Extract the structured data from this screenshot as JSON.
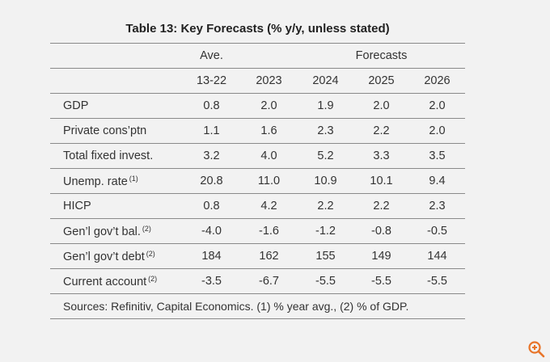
{
  "title": "Table 13: Key Forecasts (% y/y, unless stated)",
  "header": {
    "ave_label": "Ave.",
    "forecasts_label": "Forecasts",
    "years": [
      "13-22",
      "2023",
      "2024",
      "2025",
      "2026"
    ]
  },
  "rows": [
    {
      "label": "GDP",
      "note": "",
      "values": [
        "0.8",
        "2.0",
        "1.9",
        "2.0",
        "2.0"
      ]
    },
    {
      "label": "Private cons’ptn",
      "note": "",
      "values": [
        "1.1",
        "1.6",
        "2.3",
        "2.2",
        "2.0"
      ]
    },
    {
      "label": "Total fixed invest.",
      "note": "",
      "values": [
        "3.2",
        "4.0",
        "5.2",
        "3.3",
        "3.5"
      ]
    },
    {
      "label": "Unemp. rate",
      "note": "(1)",
      "values": [
        "20.8",
        "11.0",
        "10.9",
        "10.1",
        "9.4"
      ]
    },
    {
      "label": "HICP",
      "note": "",
      "values": [
        "0.8",
        "4.2",
        "2.2",
        "2.2",
        "2.3"
      ]
    },
    {
      "label": "Gen’l gov’t bal.",
      "note": "(2)",
      "values": [
        "-4.0",
        "-1.6",
        "-1.2",
        "-0.8",
        "-0.5"
      ]
    },
    {
      "label": "Gen’l gov’t debt",
      "note": "(2)",
      "values": [
        "184",
        "162",
        "155",
        "149",
        "144"
      ]
    },
    {
      "label": "Current account",
      "note": "(2)",
      "values": [
        "-3.5",
        "-6.7",
        "-5.5",
        "-5.5",
        "-5.5"
      ]
    }
  ],
  "sources": "Sources: Refinitiv, Capital Economics. (1) % year avg., (2) % of GDP.",
  "icons": {
    "zoom": "zoom-in-icon"
  },
  "colors": {
    "background": "#f2f2f2",
    "zoom_icon": "#e8752a",
    "rule": "#8a8a8a"
  }
}
